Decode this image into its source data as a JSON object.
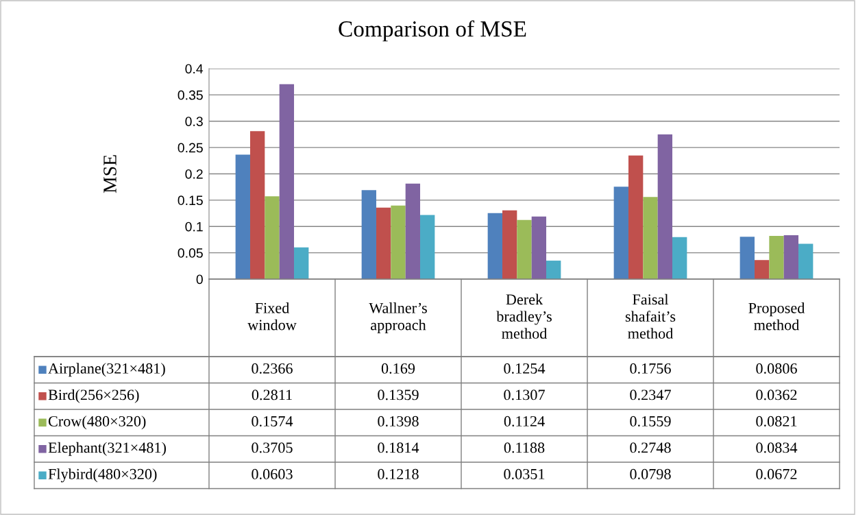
{
  "chart_data": {
    "type": "bar",
    "title": "Comparison of MSE",
    "ylabel": "MSE",
    "categories": [
      "Fixed window",
      "Wallner’s approach",
      "Derek bradley’s method",
      "Faisal shafait’s method",
      "Proposed method"
    ],
    "series": [
      {
        "name": "Airplane(321×481)",
        "color": "#4f81bd",
        "values": [
          0.2366,
          0.169,
          0.1254,
          0.1756,
          0.0806
        ]
      },
      {
        "name": "Bird(256×256)",
        "color": "#c0504d",
        "values": [
          0.2811,
          0.1359,
          0.1307,
          0.2347,
          0.0362
        ]
      },
      {
        "name": "Crow(480×320)",
        "color": "#9bbb59",
        "values": [
          0.1574,
          0.1398,
          0.1124,
          0.1559,
          0.0821
        ]
      },
      {
        "name": "Elephant(321×481)",
        "color": "#8064a2",
        "values": [
          0.3705,
          0.1814,
          0.1188,
          0.2748,
          0.0834
        ]
      },
      {
        "name": "Flybird(480×320)",
        "color": "#4bacc6",
        "values": [
          0.0603,
          0.1218,
          0.0351,
          0.0798,
          0.0672
        ]
      }
    ],
    "ylim": [
      0,
      0.4
    ],
    "yticks": [
      0,
      0.05,
      0.1,
      0.15,
      0.2,
      0.25,
      0.3,
      0.35,
      0.4
    ],
    "grid": "y",
    "legend": "bottom",
    "data_labels": true
  }
}
